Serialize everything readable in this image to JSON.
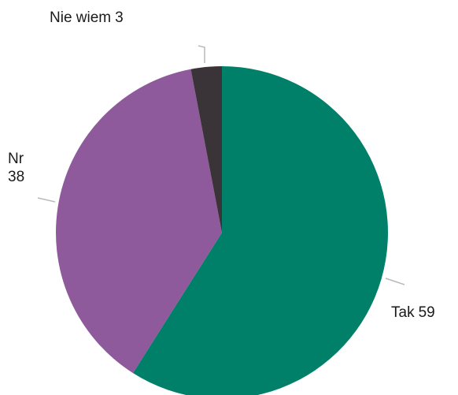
{
  "chart_data": {
    "type": "pie",
    "title": "",
    "slices": [
      {
        "label": "Tak",
        "value": 59,
        "color": "#008069"
      },
      {
        "label": "Nr",
        "value": 38,
        "color": "#8e5a9b"
      },
      {
        "label": "Nie wiem",
        "value": 3,
        "color": "#3a3438"
      }
    ],
    "legend": "none",
    "start_angle_deg": 0,
    "direction": "clockwise"
  }
}
